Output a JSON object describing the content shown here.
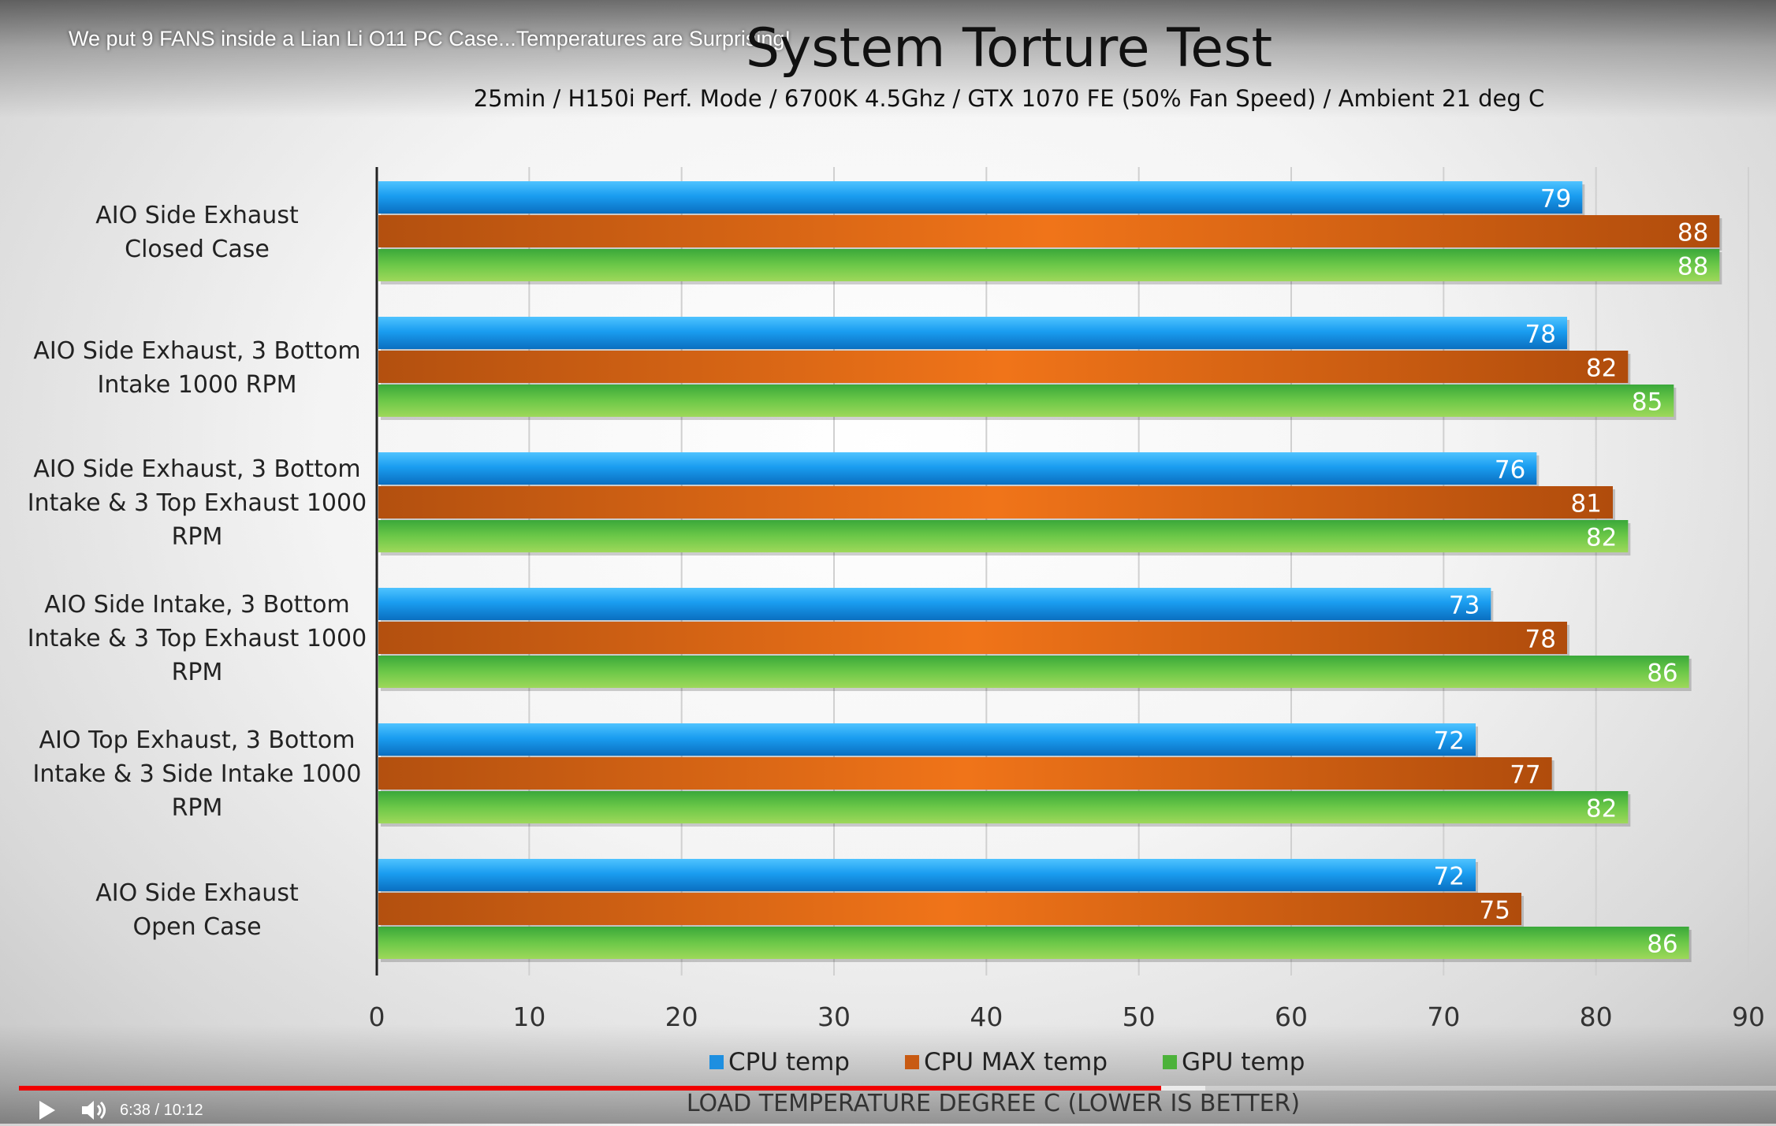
{
  "video": {
    "title": "We put 9 FANS inside a Lian Li O11 PC Case...Temperatures are Surprising!",
    "current_time": "6:38",
    "separator": "/",
    "duration": "10:12",
    "progress_fraction": 0.65,
    "buffered_fraction": 0.675
  },
  "chart_data": {
    "type": "bar",
    "orientation": "horizontal",
    "title": "System Torture Test",
    "subtitle": "25min / H150i Perf. Mode / 6700K 4.5Ghz / GTX 1070 FE (50% Fan Speed) / Ambient 21 deg C",
    "xlabel": "LOAD TEMPERATURE DEGREE C (LOWER IS BETTER)",
    "ylabel": "",
    "xlim": [
      0,
      90
    ],
    "xticks": [
      0,
      10,
      20,
      30,
      40,
      50,
      60,
      70,
      80,
      90
    ],
    "grid": true,
    "legend_position": "bottom",
    "categories": [
      [
        "AIO Side Exhaust",
        "Closed Case"
      ],
      [
        "AIO Side Exhaust, 3 Bottom",
        "Intake 1000 RPM"
      ],
      [
        "AIO Side Exhaust, 3 Bottom",
        "Intake & 3 Top Exhaust 1000",
        "RPM"
      ],
      [
        "AIO Side Intake, 3 Bottom",
        "Intake & 3 Top Exhaust 1000",
        "RPM"
      ],
      [
        "AIO Top Exhaust, 3 Bottom",
        "Intake & 3 Side Intake 1000",
        "RPM"
      ],
      [
        "AIO Side Exhaust",
        "Open Case"
      ]
    ],
    "series": [
      {
        "name": "CPU temp",
        "color": "#1e8fe0",
        "values": [
          79,
          78,
          76,
          73,
          72,
          72
        ]
      },
      {
        "name": "CPU MAX temp",
        "color": "#c85a12",
        "values": [
          88,
          82,
          81,
          78,
          77,
          75
        ]
      },
      {
        "name": "GPU temp",
        "color": "#4cb23a",
        "values": [
          88,
          85,
          82,
          86,
          82,
          86
        ]
      }
    ]
  }
}
